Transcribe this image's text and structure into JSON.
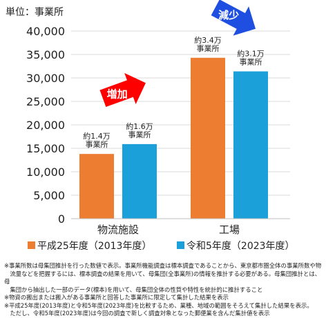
{
  "chart_data": {
    "type": "bar",
    "unit_label": "単位：事業所",
    "categories": [
      "物流施設",
      "工場"
    ],
    "ylim": [
      0,
      40000
    ],
    "yticks": [
      "0",
      "5,000",
      "10,000",
      "15,000",
      "20,000",
      "25,000",
      "30,000",
      "35,000",
      "40,000"
    ],
    "series": [
      {
        "name": "平成25年度（2013年度）",
        "color": "#ED7D31",
        "values": [
          13800,
          34300
        ],
        "labels": [
          [
            "約1.4万",
            "事業所"
          ],
          [
            "約3.4万",
            "事業所"
          ]
        ]
      },
      {
        "name": "令和5年度（2023年度）",
        "color": "#1CA0DA",
        "values": [
          15900,
          31400
        ],
        "labels": [
          [
            "約1.6万",
            "事業所"
          ],
          [
            "約3.1万",
            "事業所"
          ]
        ]
      }
    ],
    "annotations": [
      {
        "text": "増加",
        "color": "#FF0000",
        "group": 0
      },
      {
        "text": "減少",
        "color": "#1F4FE0",
        "group": 1
      }
    ],
    "grid": true,
    "legend": "bottom"
  },
  "notes": [
    "※事業所数は母集団推計を行った数値で表示。事業所機能調査は標本調査であることから、東京都市圏全体の事業所数や物",
    "　流量などを把握するには、標本調査の結果を用いて、母集団(全事業所)の情報を推計する必要がある。母集団推計とは、母",
    "　集団から抽出した一部のデータ(標本)を用いて、母集団全体の性質や特性を統計的に推計すること",
    "※物資の搬出または搬入がある事業所と回答した事業所に限定して集計した結果を表示",
    "※平成25年度(2013年度)と令和5年度(2023年度)を比較するため、業種、地域の範囲をそろえて集計した結果を表示。",
    "　ただし、令和5年度(2023年度)は今回の調査で新しく調査対象となった郵便業を含んだ集計値を表示"
  ]
}
